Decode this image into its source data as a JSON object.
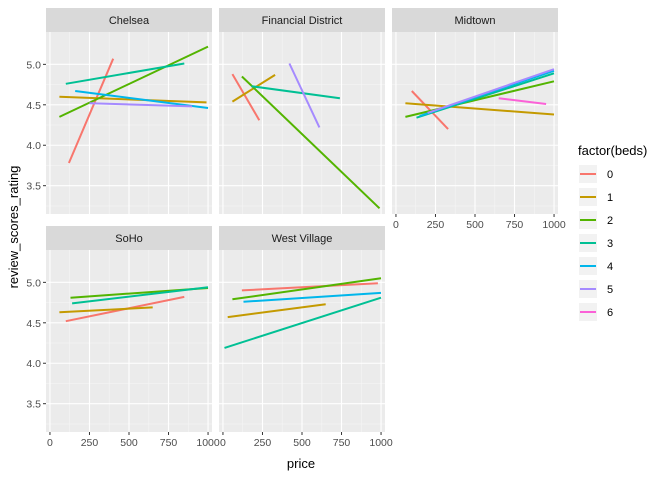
{
  "chart_data": {
    "type": "line",
    "xlabel": "price",
    "ylabel": "review_scores_rating",
    "xlim": [
      -25,
      1025
    ],
    "ylim": [
      3.15,
      5.4
    ],
    "x_ticks": [
      "0",
      "250",
      "500",
      "750",
      "1000"
    ],
    "x_tick_values": [
      0,
      250,
      500,
      750,
      1000
    ],
    "y_ticks": [
      "3.5",
      "4.0",
      "4.5",
      "5.0"
    ],
    "y_tick_values": [
      3.5,
      4.0,
      4.5,
      5.0
    ],
    "grid": true,
    "legend": {
      "title": "factor(beds)",
      "position": "right",
      "entries": [
        {
          "label": "0",
          "color": "#F8766D"
        },
        {
          "label": "1",
          "color": "#C49A00"
        },
        {
          "label": "2",
          "color": "#53B400"
        },
        {
          "label": "3",
          "color": "#00C094"
        },
        {
          "label": "4",
          "color": "#00B6EB"
        },
        {
          "label": "5",
          "color": "#A58AFF"
        },
        {
          "label": "6",
          "color": "#FB61D7"
        }
      ]
    },
    "panels": [
      {
        "name": "Chelsea",
        "series": [
          {
            "beds": "0",
            "x": [
              120,
              400
            ],
            "y": [
              3.78,
              5.07
            ]
          },
          {
            "beds": "1",
            "x": [
              60,
              990
            ],
            "y": [
              4.6,
              4.53
            ]
          },
          {
            "beds": "2",
            "x": [
              60,
              1000
            ],
            "y": [
              4.35,
              5.22
            ]
          },
          {
            "beds": "3",
            "x": [
              100,
              850
            ],
            "y": [
              4.76,
              5.01
            ]
          },
          {
            "beds": "4",
            "x": [
              160,
              1000
            ],
            "y": [
              4.67,
              4.46
            ]
          },
          {
            "beds": "5",
            "x": [
              250,
              900
            ],
            "y": [
              4.52,
              4.48
            ]
          }
        ]
      },
      {
        "name": "Financial District",
        "series": [
          {
            "beds": "0",
            "x": [
              60,
              230
            ],
            "y": [
              4.88,
              4.31
            ]
          },
          {
            "beds": "1",
            "x": [
              60,
              330
            ],
            "y": [
              4.54,
              4.87
            ]
          },
          {
            "beds": "2",
            "x": [
              120,
              990
            ],
            "y": [
              4.85,
              3.22
            ]
          },
          {
            "beds": "3",
            "x": [
              180,
              740
            ],
            "y": [
              4.73,
              4.58
            ]
          },
          {
            "beds": "5",
            "x": [
              420,
              610
            ],
            "y": [
              5.01,
              4.22
            ]
          }
        ]
      },
      {
        "name": "Midtown",
        "series": [
          {
            "beds": "0",
            "x": [
              100,
              330
            ],
            "y": [
              4.67,
              4.2
            ]
          },
          {
            "beds": "1",
            "x": [
              60,
              1000
            ],
            "y": [
              4.52,
              4.38
            ]
          },
          {
            "beds": "2",
            "x": [
              60,
              1000
            ],
            "y": [
              4.35,
              4.79
            ]
          },
          {
            "beds": "3",
            "x": [
              130,
              1000
            ],
            "y": [
              4.34,
              4.89
            ]
          },
          {
            "beds": "4",
            "x": [
              150,
              1000
            ],
            "y": [
              4.36,
              4.92
            ]
          },
          {
            "beds": "5",
            "x": [
              200,
              1000
            ],
            "y": [
              4.4,
              4.94
            ]
          },
          {
            "beds": "6",
            "x": [
              650,
              950
            ],
            "y": [
              4.58,
              4.51
            ]
          }
        ]
      },
      {
        "name": "SoHo",
        "series": [
          {
            "beds": "0",
            "x": [
              100,
              850
            ],
            "y": [
              4.52,
              4.82
            ]
          },
          {
            "beds": "1",
            "x": [
              60,
              650
            ],
            "y": [
              4.63,
              4.69
            ]
          },
          {
            "beds": "2",
            "x": [
              130,
              1000
            ],
            "y": [
              4.81,
              4.93
            ]
          },
          {
            "beds": "3",
            "x": [
              140,
              1000
            ],
            "y": [
              4.74,
              4.94
            ]
          }
        ]
      },
      {
        "name": "West Village",
        "series": [
          {
            "beds": "0",
            "x": [
              120,
              980
            ],
            "y": [
              4.9,
              4.99
            ]
          },
          {
            "beds": "1",
            "x": [
              30,
              650
            ],
            "y": [
              4.57,
              4.73
            ]
          },
          {
            "beds": "2",
            "x": [
              60,
              1000
            ],
            "y": [
              4.79,
              5.05
            ]
          },
          {
            "beds": "3",
            "x": [
              10,
              1000
            ],
            "y": [
              4.19,
              4.81
            ]
          },
          {
            "beds": "4",
            "x": [
              130,
              1000
            ],
            "y": [
              4.76,
              4.87
            ]
          }
        ]
      }
    ]
  }
}
